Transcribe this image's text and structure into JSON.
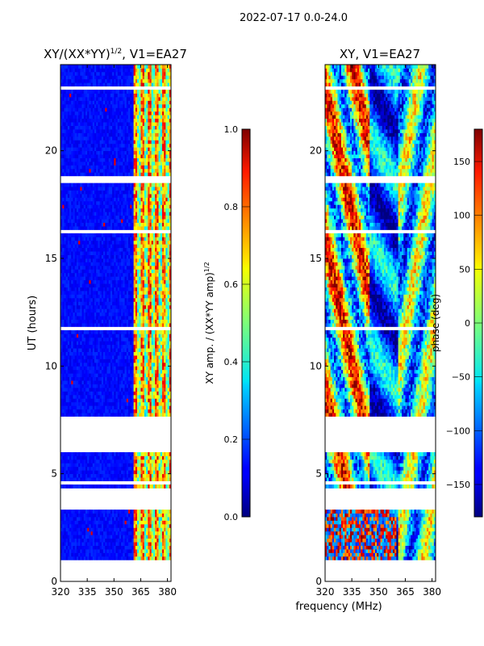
{
  "page_title": "2022-07-17 0.0-24.0",
  "chart_data": [
    {
      "type": "heatmap",
      "title": "XY/(XX*YY)",
      "title_superscript": "1/2",
      "title_suffix": ", V1=EA27",
      "xlabel": "",
      "ylabel": "UT (hours)",
      "xlim": [
        320,
        382
      ],
      "ylim": [
        0,
        24
      ],
      "x_ticks": [
        320,
        335,
        350,
        365,
        380
      ],
      "y_ticks": [
        0,
        5,
        10,
        15,
        20
      ],
      "colorbar": {
        "label": "XY amp. / (XX*YY amp)",
        "label_superscript": "1/2",
        "range": [
          0.0,
          1.0
        ],
        "ticks": [
          "0.0",
          "0.2",
          "0.4",
          "0.6",
          "0.8",
          "1.0"
        ]
      },
      "flagged_hour_ranges": [
        [
          0.0,
          0.85
        ],
        [
          3.3,
          4.2
        ],
        [
          4.4,
          4.6
        ],
        [
          6.0,
          7.6
        ],
        [
          11.6,
          11.7
        ],
        [
          16.1,
          16.3
        ],
        [
          18.5,
          18.7
        ],
        [
          22.8,
          22.9
        ]
      ],
      "bright_band_mhz": [
        361,
        382
      ],
      "background_value": 0.1,
      "band_value": 0.55
    },
    {
      "type": "heatmap",
      "title": "XY, V1=EA27",
      "xlabel": "frequency (MHz)",
      "ylabel": "",
      "xlim": [
        320,
        382
      ],
      "ylim": [
        0,
        24
      ],
      "x_ticks": [
        320,
        335,
        350,
        365,
        380
      ],
      "y_ticks": [
        0,
        5,
        10,
        15,
        20
      ],
      "colorbar": {
        "label": "phase (deg)",
        "range": [
          -180,
          180
        ],
        "ticks": [
          "−150",
          "−100",
          "−50",
          "0",
          "50",
          "100",
          "150"
        ]
      },
      "flagged_hour_ranges": [
        [
          0.0,
          0.85
        ],
        [
          3.3,
          4.2
        ],
        [
          4.4,
          4.6
        ],
        [
          6.0,
          7.6
        ],
        [
          11.6,
          11.7
        ],
        [
          16.1,
          16.3
        ],
        [
          18.5,
          18.7
        ],
        [
          22.8,
          22.9
        ]
      ],
      "phase_note": "phase wraps across full range"
    }
  ]
}
